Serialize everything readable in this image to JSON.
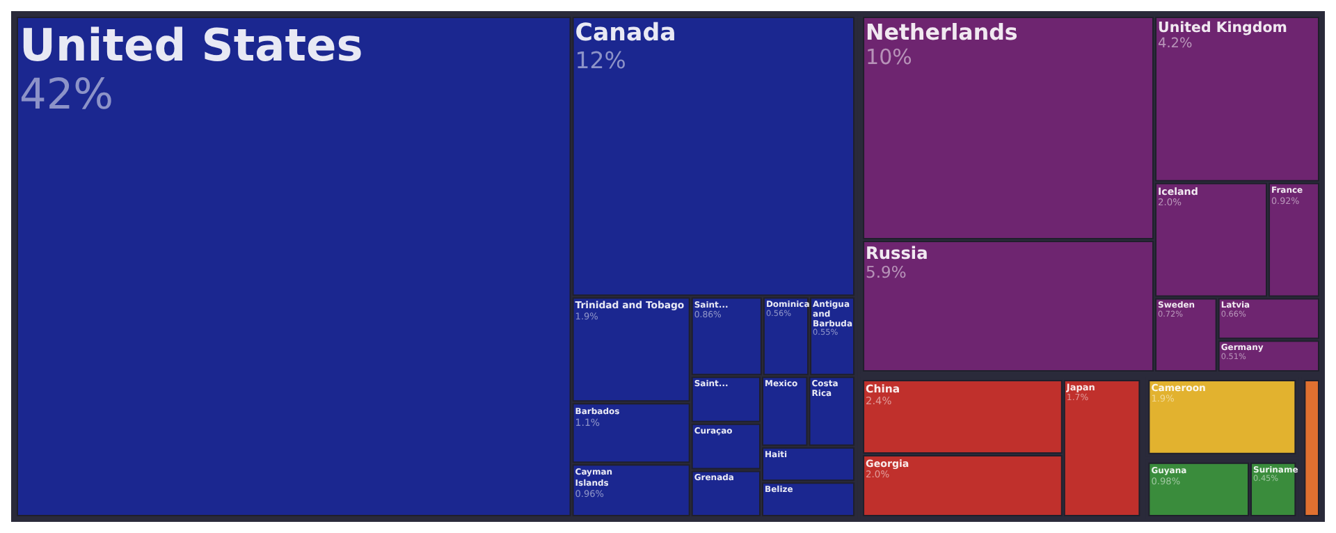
{
  "chart_data": {
    "type": "other",
    "categories": [
      "United States",
      "Canada",
      "Trinidad and Tobago",
      "Saint...",
      "Dominica",
      "Antigua and Barbuda",
      "Barbados",
      "Cayman Islands",
      "Belize",
      "Haiti",
      "Costa Rica",
      "Mexico",
      "Grenada",
      "Curaçao",
      "Saint...",
      "Netherlands",
      "Russia",
      "United Kingdom",
      "Iceland",
      "Sweden",
      "Latvia",
      "France",
      "Germany",
      "China",
      "Georgia",
      "Japan",
      "Cameroon",
      "Guyana",
      "Suriname",
      null
    ],
    "values": [
      42,
      12,
      1.9,
      0.86,
      0.56,
      0.55,
      1.1,
      0.96,
      null,
      null,
      null,
      null,
      null,
      null,
      null,
      10,
      5.9,
      4.2,
      2.0,
      0.72,
      0.66,
      0.92,
      0.51,
      2.4,
      2.0,
      1.7,
      1.9,
      0.98,
      0.45,
      null
    ],
    "value_labels": [
      "42%",
      "12%",
      "1.9%",
      "0.86%",
      "0.56%",
      "0.55%",
      "1.1%",
      "0.96%",
      null,
      null,
      null,
      null,
      null,
      null,
      null,
      "10%",
      "5.9%",
      "4.2%",
      "2.0%",
      "0.72%",
      "0.66%",
      "0.92%",
      "0.51%",
      "2.4%",
      "2.0%",
      "1.7%",
      "1.9%",
      "0.98%",
      "0.45%",
      null
    ],
    "colors": [
      "#1b2790",
      "#1b2790",
      "#1b2790",
      "#1b2790",
      "#1b2790",
      "#1b2790",
      "#1b2790",
      "#1b2790",
      "#1b2790",
      "#1b2790",
      "#1b2790",
      "#1b2790",
      "#1b2790",
      "#1b2790",
      "#1b2790",
      "#6e2570",
      "#6e2570",
      "#6e2570",
      "#6e2570",
      "#6e2570",
      "#6e2570",
      "#6e2570",
      "#6e2570",
      "#c0302c",
      "#c0302c",
      "#c0302c",
      "#e2b22f",
      "#3a8c3c",
      "#3a8c3c",
      "#e07030"
    ]
  }
}
